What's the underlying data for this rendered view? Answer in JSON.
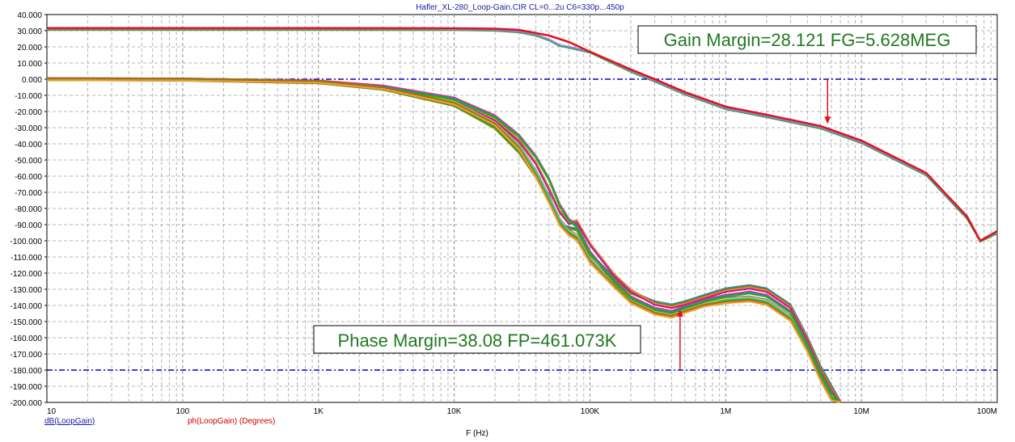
{
  "title": "Hafler_XL-280_Loop-Gain.CIR CL=0...2u C6=330p...450p",
  "chart_data": {
    "type": "line",
    "x_scale": "log",
    "xlim": [
      10,
      100000000
    ],
    "ylim": [
      -200,
      40
    ],
    "xlabel": "F (Hz)",
    "y_ticks": [
      "40.000",
      "30.000",
      "20.000",
      "10.000",
      "0.000",
      "-10.000",
      "-20.000",
      "-30.000",
      "-40.000",
      "-50.000",
      "-60.000",
      "-70.000",
      "-80.000",
      "-90.000",
      "-100.000",
      "-110.000",
      "-120.000",
      "-130.000",
      "-140.000",
      "-150.000",
      "-160.000",
      "-170.000",
      "-180.000",
      "-190.000",
      "-200.000"
    ],
    "x_ticks": [
      "10",
      "100",
      "1K",
      "10K",
      "100K",
      "1M",
      "10M",
      "100M"
    ],
    "reference_lines": [
      0,
      -180
    ],
    "legend": [
      "dB(LoopGain)",
      "ph(LoopGain) (Degrees)"
    ],
    "colors": {
      "gain": "#e0141e",
      "gain_alt": "#8a8ae6",
      "phase": [
        "#3a7ac8",
        "#18b018",
        "#6a8c1a",
        "#c85a1a",
        "#e8a030",
        "#c01c8c",
        "#a040d0",
        "#e8e020",
        "#10d080",
        "#ff2080"
      ],
      "reference": "#0000c8",
      "annotation_text": "#1f7a1f",
      "arrow": "#e0141e"
    },
    "series": [
      {
        "name": "dB(LoopGain)",
        "x": [
          10,
          100,
          1000,
          10000,
          20000,
          30000,
          50000,
          70000,
          100000,
          200000,
          300000,
          500000,
          1000000,
          2000000,
          5000000,
          10000000,
          30000000,
          60000000,
          75000000,
          100000000
        ],
        "values": [
          31.6,
          31.6,
          31.6,
          31.5,
          31.2,
          30.5,
          27,
          23,
          17,
          6,
          0,
          -8,
          -17,
          -22,
          -29,
          -38,
          -58,
          -85,
          -100,
          -94
        ]
      },
      {
        "name": "",
        "x": [
          10,
          100,
          1000,
          10000,
          20000,
          30000,
          40000,
          50000,
          60000,
          70000,
          100000,
          200000,
          300000,
          500000,
          1000000,
          2000000,
          5000000,
          10000000,
          30000000,
          60000000,
          75000000,
          100000000
        ],
        "values": [
          31,
          31,
          31,
          30.9,
          30.5,
          29.5,
          27.5,
          24.5,
          21,
          20,
          17,
          5,
          -1,
          -9,
          -18,
          -23,
          -30,
          -39,
          -59,
          -86,
          -100,
          -95
        ]
      },
      {
        "name": "",
        "x": [
          10,
          100,
          1000,
          3000,
          10000,
          20000,
          30000,
          50000,
          60000,
          70000,
          80000,
          100000,
          150000,
          200000,
          300000,
          400000,
          500000,
          700000,
          1000000,
          1500000,
          2000000,
          3000000,
          4000000,
          5000000,
          6000000,
          7000000
        ],
        "values": [
          0,
          -0.3,
          -2,
          -6,
          -16,
          -30,
          -45,
          -72,
          -90,
          -92,
          -93,
          -108,
          -123,
          -132,
          -138,
          -140,
          -138,
          -134,
          -130,
          -128,
          -130,
          -140,
          -160,
          -178,
          -190,
          -200
        ]
      },
      {
        "name": "",
        "x": [
          10,
          100,
          1000,
          3000,
          10000,
          20000,
          30000,
          40000,
          50000,
          60000,
          70000,
          80000,
          100000,
          150000,
          200000,
          300000,
          400000,
          500000,
          700000,
          1000000,
          1500000,
          2000000,
          3000000,
          4000000,
          5000000,
          6000000,
          7000000
        ],
        "values": [
          0,
          -0.2,
          -1.5,
          -5,
          -13,
          -25,
          -38,
          -52,
          -68,
          -82,
          -89,
          -88,
          -102,
          -121,
          -131,
          -139,
          -141,
          -139,
          -135,
          -131,
          -129,
          -131,
          -141,
          -161,
          -180,
          -192,
          -200
        ]
      },
      {
        "name": "",
        "x": [
          10,
          100,
          1000,
          3000,
          10000,
          20000,
          30000,
          40000,
          50000,
          60000,
          70000,
          80000,
          100000,
          150000,
          200000,
          300000,
          400000,
          500000,
          700000,
          1000000,
          1500000,
          2000000,
          3000000,
          4000000,
          5000000,
          6000000,
          7000000
        ],
        "values": [
          0,
          -0.2,
          -1.5,
          -5,
          -14,
          -27,
          -41,
          -57,
          -73,
          -87,
          -94,
          -97,
          -111,
          -127,
          -137,
          -144,
          -146,
          -143,
          -139,
          -136,
          -135,
          -137,
          -147,
          -166,
          -184,
          -196,
          -200
        ]
      },
      {
        "name": "",
        "x": [
          10,
          100,
          1000,
          3000,
          10000,
          20000,
          30000,
          40000,
          50000,
          60000,
          70000,
          80000,
          100000,
          150000,
          200000,
          300000,
          400000,
          500000,
          700000,
          1000000,
          1500000,
          2000000,
          3000000,
          4000000,
          5000000,
          6000000,
          7000000
        ],
        "values": [
          0,
          -0.2,
          -1.4,
          -4.5,
          -12,
          -23,
          -35,
          -48,
          -62,
          -78,
          -87,
          -91,
          -107,
          -125,
          -135,
          -142,
          -144,
          -141,
          -137,
          -134,
          -132,
          -134,
          -144,
          -164,
          -182,
          -194,
          -200
        ]
      },
      {
        "name": "",
        "x": [
          10,
          100,
          1000,
          3000,
          10000,
          20000,
          30000,
          40000,
          50000,
          60000,
          70000,
          80000,
          100000,
          150000,
          200000,
          300000,
          400000,
          500000,
          700000,
          1000000,
          1500000,
          2000000,
          3000000,
          4000000,
          5000000,
          6000000,
          7000000
        ],
        "values": [
          0,
          -0.2,
          -1.6,
          -5.5,
          -15,
          -28,
          -43,
          -60,
          -76,
          -90,
          -96,
          -99,
          -113,
          -128,
          -138,
          -145,
          -147,
          -144,
          -140,
          -138,
          -137,
          -139,
          -149,
          -168,
          -186,
          -198,
          -200
        ]
      }
    ],
    "annotations": [
      {
        "text": "Gain Margin=28.121 FG=5.628MEG",
        "x": 5628000,
        "y": -28.121
      },
      {
        "text": "Phase Margin=38.08 FP=461.073K",
        "x": 461073,
        "y": -141.92
      }
    ]
  }
}
